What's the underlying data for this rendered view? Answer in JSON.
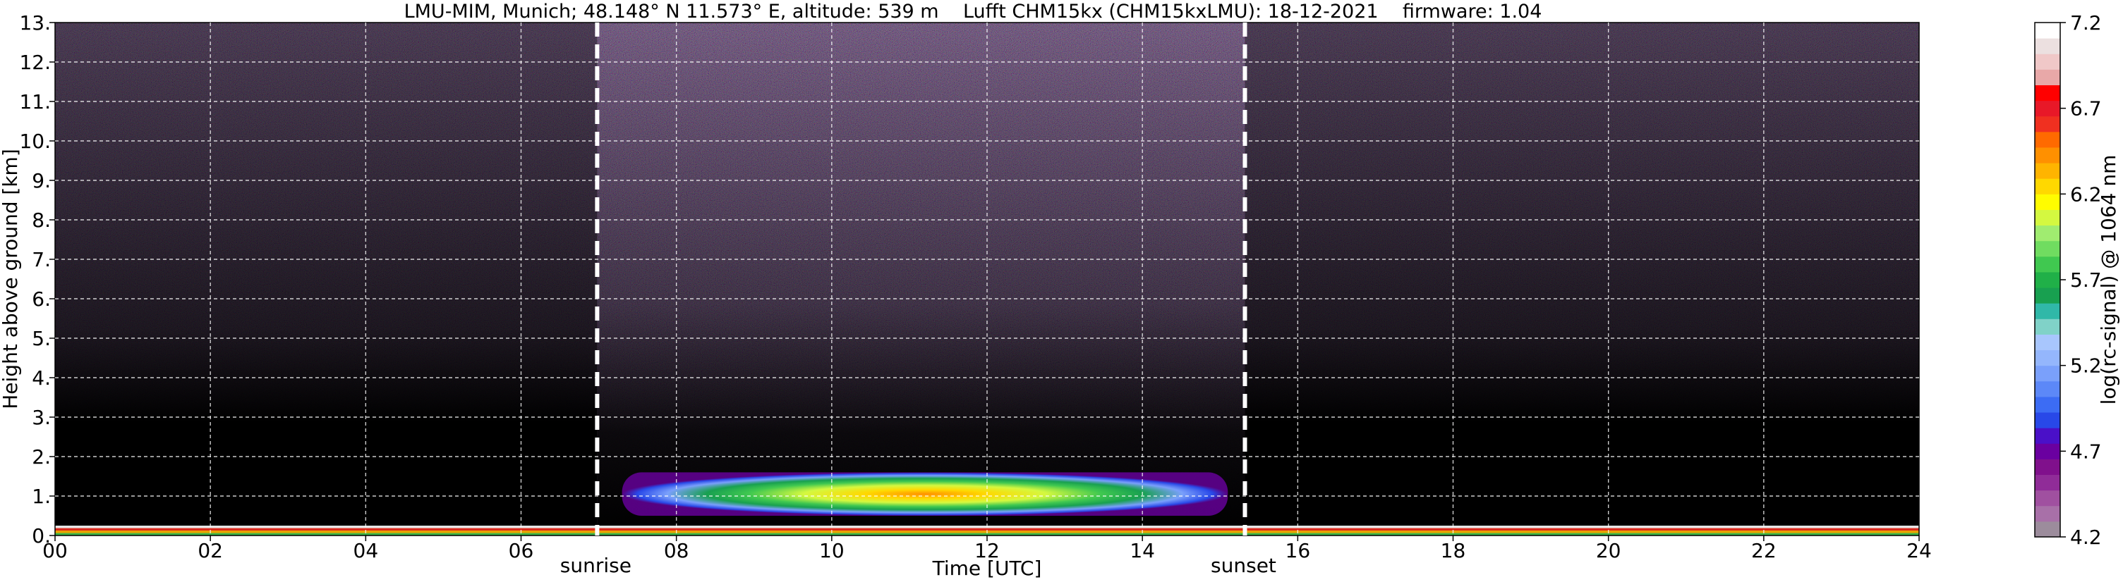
{
  "chart_data": {
    "type": "heatmap",
    "title": "LMU-MIM, Munich; 48.148° N 11.573° E, altitude: 539 m    Lufft CHM15kx (CHM15kxLMU): 18-12-2021    firmware: 1.04",
    "xlabel": "Time [UTC]",
    "ylabel": "Height above ground [km]",
    "xlim": [
      0,
      24
    ],
    "ylim": [
      0,
      13
    ],
    "x_ticks": [
      "00",
      "02",
      "04",
      "06",
      "08",
      "10",
      "12",
      "14",
      "16",
      "18",
      "20",
      "22",
      "24"
    ],
    "y_ticks": [
      "0.",
      "1.",
      "2.",
      "3.",
      "4.",
      "5.",
      "6.",
      "7.",
      "8.",
      "9.",
      "10.",
      "11.",
      "12.",
      "13."
    ],
    "grid": true,
    "markers": [
      {
        "label": "sunrise",
        "x": 6.98
      },
      {
        "label": "sunset",
        "x": 15.32
      }
    ],
    "colorbar": {
      "label": "log(rc-signal) @ 1064 nm",
      "range": [
        4.2,
        7.2
      ],
      "ticks": [
        "4.2",
        "4.7",
        "5.2",
        "5.7",
        "6.2",
        "6.7",
        "7.2"
      ],
      "colors": [
        "#9c8c9c",
        "#a870a8",
        "#a050a0",
        "#902c98",
        "#80108c",
        "#6a00a0",
        "#4a10c8",
        "#2848e8",
        "#3c6cf4",
        "#5c88f8",
        "#7aa0fb",
        "#94b6fc",
        "#a8c6fd",
        "#80d2c8",
        "#30b8a8",
        "#18a050",
        "#20b048",
        "#40c850",
        "#70dc60",
        "#a0ec70",
        "#d4f840",
        "#fffc00",
        "#ffd800",
        "#ffb400",
        "#ff9000",
        "#ff6a00",
        "#f03020",
        "#e81828",
        "#ff0000",
        "#e8a8a8",
        "#f0c8c8",
        "#ece0e0",
        "#ffffff"
      ]
    },
    "features": [
      {
        "type": "boundary-layer",
        "x_start": 7.3,
        "x_end": 15.1,
        "y_bottom": 0.5,
        "y_top": 1.6,
        "peak_value": 6.2
      },
      {
        "type": "surface-layer",
        "x_start": 0,
        "x_end": 24,
        "y_bottom": 0,
        "y_top": 0.25
      }
    ]
  }
}
